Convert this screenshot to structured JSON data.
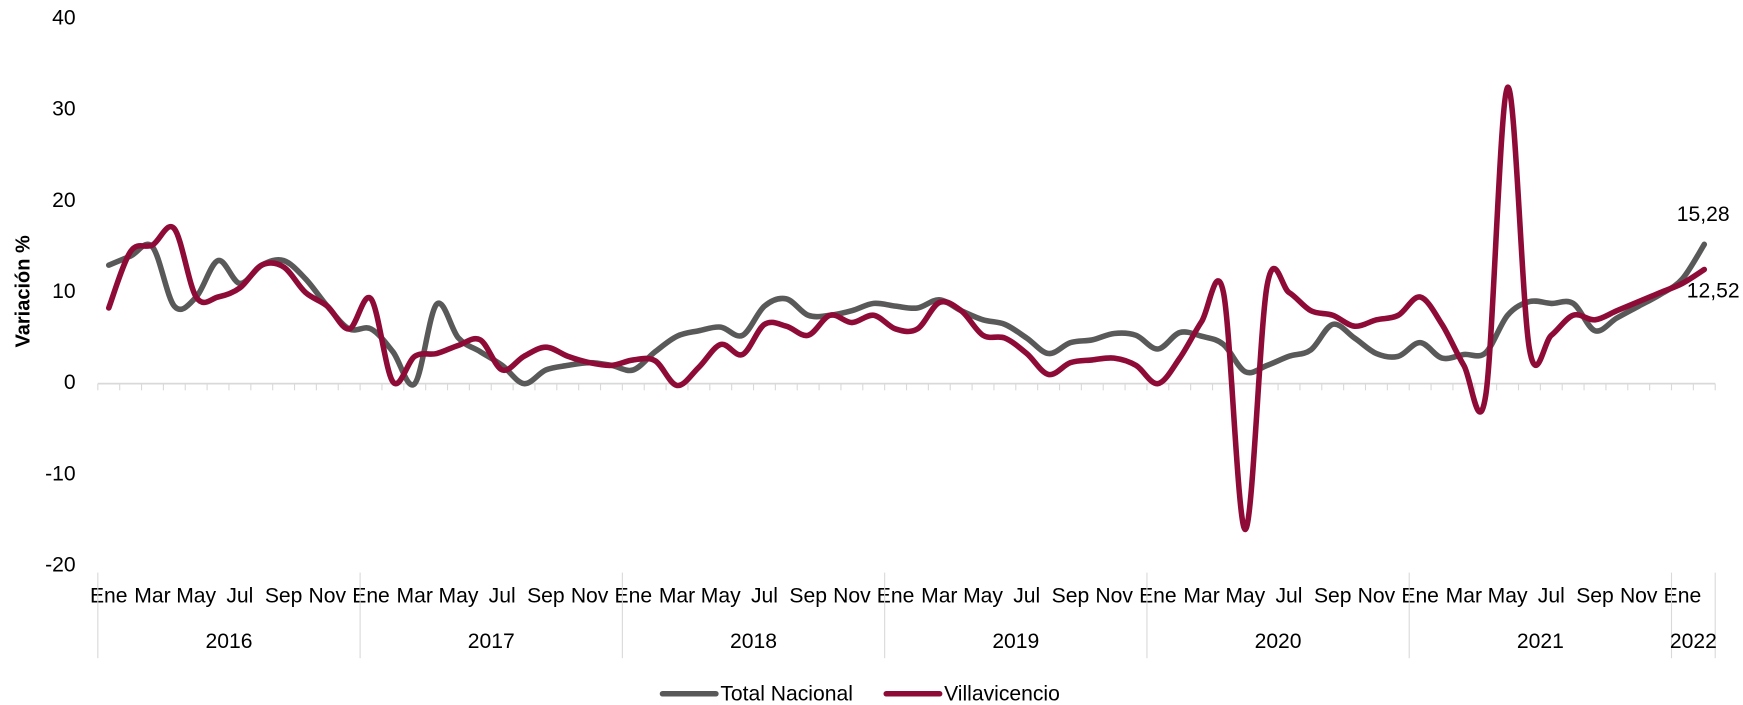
{
  "chart_data": {
    "type": "line",
    "y_label": "Variación %",
    "categories": [
      "Ene",
      null,
      "Mar",
      null,
      "May",
      null,
      "Jul",
      null,
      "Sep",
      null,
      "Nov",
      null,
      "Ene",
      null,
      "Mar",
      null,
      "May",
      null,
      "Jul",
      null,
      "Sep",
      null,
      "Nov",
      null,
      "Ene",
      null,
      "Mar",
      null,
      "May",
      null,
      "Jul",
      null,
      "Sep",
      null,
      "Nov",
      null,
      "Ene",
      null,
      "Mar",
      null,
      "May",
      null,
      "Jul",
      null,
      "Sep",
      null,
      "Nov",
      null,
      "Ene",
      null,
      "Mar",
      null,
      "May",
      null,
      "Jul",
      null,
      "Sep",
      null,
      "Nov",
      null,
      "Ene",
      null,
      "Mar",
      null,
      "May",
      null,
      "Jul",
      null,
      "Sep",
      null,
      "Nov",
      null,
      "Ene",
      null
    ],
    "years": [
      "2016",
      "2017",
      "2018",
      "2019",
      "2020",
      "2021",
      "2022"
    ],
    "series": [
      {
        "name": "Total Nacional",
        "color": "#595959",
        "values": [
          13,
          14,
          15,
          8.5,
          9.5,
          13.5,
          11,
          13,
          13.5,
          11.5,
          8.5,
          6,
          6,
          3.5,
          0,
          8.7,
          5,
          3.5,
          2,
          0,
          1.5,
          2,
          2.3,
          2,
          1.5,
          3.5,
          5.2,
          5.8,
          6.2,
          5.3,
          8.5,
          9.3,
          7.5,
          7.5,
          8,
          8.8,
          8.5,
          8.3,
          9.2,
          8,
          7,
          6.5,
          5,
          3.3,
          4.5,
          4.8,
          5.5,
          5.3,
          3.8,
          5.6,
          5.2,
          4.3,
          1.3,
          2,
          3,
          3.7,
          6.5,
          5,
          3.3,
          3,
          4.5,
          2.8,
          3.2,
          3.4,
          7.5,
          9,
          8.8,
          8.8,
          5.8,
          7.2,
          8.5,
          9.8,
          11.5,
          15.28
        ],
        "value_labels": [
          null,
          null,
          null,
          null,
          null,
          null,
          null,
          null,
          null,
          null,
          null,
          null,
          null,
          null,
          null,
          null,
          null,
          null,
          null,
          null,
          null,
          null,
          null,
          null,
          null,
          null,
          null,
          null,
          null,
          null,
          null,
          null,
          null,
          null,
          null,
          null,
          null,
          null,
          null,
          null,
          null,
          null,
          null,
          null,
          null,
          null,
          null,
          null,
          null,
          null,
          null,
          null,
          null,
          null,
          null,
          null,
          null,
          null,
          null,
          null,
          null,
          null,
          null,
          null,
          null,
          null,
          null,
          null,
          null,
          null,
          null,
          null,
          null,
          "15,28"
        ]
      },
      {
        "name": "Villavicencio",
        "color": "#8e0b37",
        "values": [
          8.3,
          14.5,
          15.2,
          17,
          9.5,
          9.5,
          10.5,
          13,
          12.8,
          10,
          8.5,
          6,
          9.3,
          0.2,
          3,
          3.3,
          4.2,
          4.8,
          1.5,
          3,
          4,
          3,
          2.3,
          2,
          2.6,
          2.5,
          -0.2,
          1.8,
          4.3,
          3.2,
          6.5,
          6.3,
          5.3,
          7.5,
          6.7,
          7.5,
          6,
          6,
          8.9,
          8,
          5.3,
          5,
          3.3,
          1,
          2.3,
          2.6,
          2.8,
          2,
          0,
          2.8,
          6.8,
          10,
          -16,
          10.8,
          10,
          8,
          7.5,
          6.3,
          7,
          7.5,
          9.5,
          6.5,
          2,
          -1.3,
          32.5,
          3.8,
          5.3,
          7.5,
          7,
          8,
          9,
          10,
          11,
          12.52
        ],
        "value_labels": [
          null,
          null,
          null,
          null,
          null,
          null,
          null,
          null,
          null,
          null,
          null,
          null,
          null,
          null,
          null,
          null,
          null,
          null,
          null,
          null,
          null,
          null,
          null,
          null,
          null,
          null,
          null,
          null,
          null,
          null,
          null,
          null,
          null,
          null,
          null,
          null,
          null,
          null,
          null,
          null,
          null,
          null,
          null,
          null,
          null,
          null,
          null,
          null,
          null,
          null,
          null,
          null,
          null,
          null,
          null,
          null,
          null,
          null,
          null,
          null,
          null,
          null,
          null,
          null,
          null,
          null,
          null,
          null,
          null,
          null,
          null,
          null,
          null,
          "12,52"
        ]
      }
    ],
    "ylim": [
      -20,
      40
    ],
    "yticks": [
      -20,
      -10,
      0,
      10,
      20,
      30,
      40
    ],
    "grid": false,
    "legend": "bottom"
  }
}
